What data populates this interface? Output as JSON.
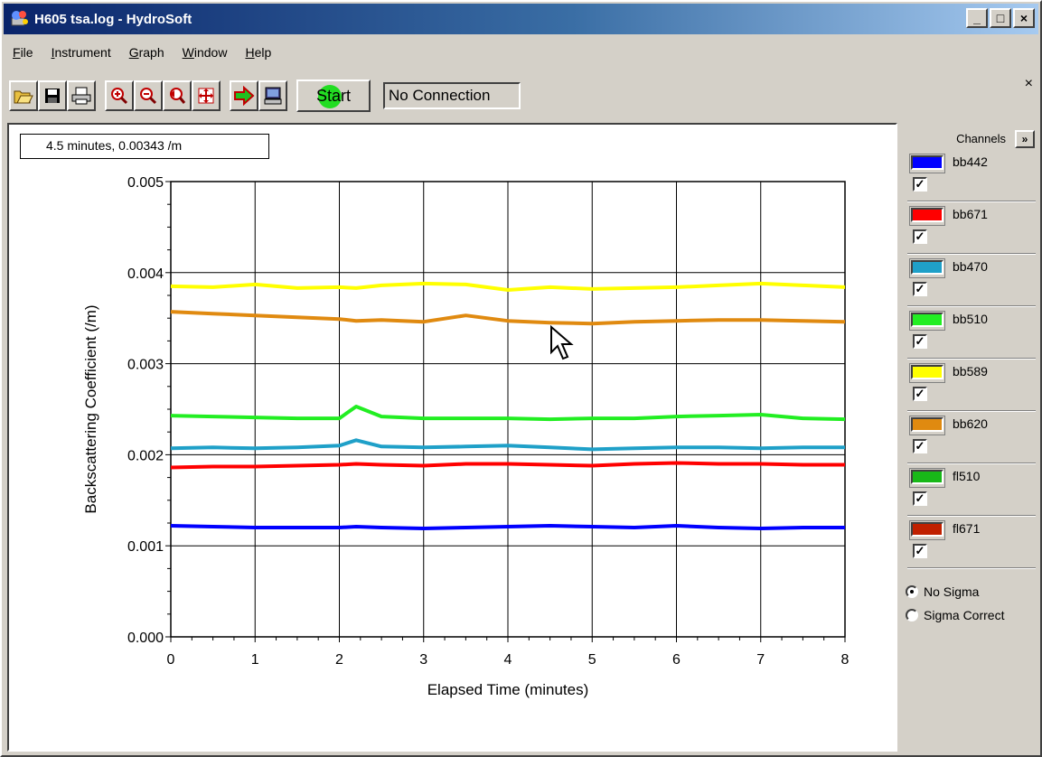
{
  "window": {
    "title": "H605 tsa.log - HydroSoft",
    "minimize": "_",
    "maximize": "□",
    "close": "×"
  },
  "menu": {
    "items": [
      {
        "accel": "F",
        "rest": "ile"
      },
      {
        "accel": "I",
        "rest": "nstrument"
      },
      {
        "accel": "G",
        "rest": "raph"
      },
      {
        "accel": "W",
        "rest": "indow"
      },
      {
        "accel": "H",
        "rest": "elp"
      }
    ]
  },
  "toolbar": {
    "start_label": "Start",
    "status": "No Connection",
    "panel_close": "×"
  },
  "plot": {
    "readout": "4.5 minutes, 0.00343 /m"
  },
  "chart_data": {
    "type": "line",
    "xlabel": "Elapsed Time (minutes)",
    "ylabel": "Backscattering Coefficient (/m)",
    "xlim": [
      0,
      8
    ],
    "ylim": [
      0.0,
      0.005
    ],
    "xticks": [
      "0",
      "1",
      "2",
      "3",
      "4",
      "5",
      "6",
      "7",
      "8"
    ],
    "yticks": [
      "0.000",
      "0.001",
      "0.002",
      "0.003",
      "0.004",
      "0.005"
    ],
    "grid": true,
    "x": [
      0,
      0.5,
      1,
      1.5,
      2,
      2.2,
      2.5,
      3,
      3.5,
      4,
      4.5,
      5,
      5.5,
      6,
      6.5,
      7,
      7.5,
      8
    ],
    "series": [
      {
        "name": "bb442",
        "color": "#0000ff",
        "values": [
          0.00122,
          0.00121,
          0.0012,
          0.0012,
          0.0012,
          0.00121,
          0.0012,
          0.00119,
          0.0012,
          0.00121,
          0.00122,
          0.00121,
          0.0012,
          0.00122,
          0.0012,
          0.00119,
          0.0012,
          0.0012
        ]
      },
      {
        "name": "bb671",
        "color": "#ff0000",
        "values": [
          0.00186,
          0.00187,
          0.00187,
          0.00188,
          0.00189,
          0.0019,
          0.00189,
          0.00188,
          0.0019,
          0.0019,
          0.00189,
          0.00188,
          0.0019,
          0.00191,
          0.0019,
          0.0019,
          0.00189,
          0.00189
        ]
      },
      {
        "name": "bb470",
        "color": "#1fa0c8",
        "values": [
          0.00207,
          0.00208,
          0.00207,
          0.00208,
          0.0021,
          0.00216,
          0.00209,
          0.00208,
          0.00209,
          0.0021,
          0.00208,
          0.00206,
          0.00207,
          0.00208,
          0.00208,
          0.00207,
          0.00208,
          0.00208
        ]
      },
      {
        "name": "bb510",
        "color": "#22ee22",
        "values": [
          0.00243,
          0.00242,
          0.00241,
          0.0024,
          0.0024,
          0.00253,
          0.00242,
          0.0024,
          0.0024,
          0.0024,
          0.00239,
          0.0024,
          0.0024,
          0.00242,
          0.00243,
          0.00244,
          0.0024,
          0.00239
        ]
      },
      {
        "name": "bb589",
        "color": "#ffff00",
        "values": [
          0.00385,
          0.00384,
          0.00387,
          0.00383,
          0.00384,
          0.00383,
          0.00386,
          0.00388,
          0.00387,
          0.00381,
          0.00384,
          0.00382,
          0.00383,
          0.00384,
          0.00386,
          0.00388,
          0.00386,
          0.00384
        ]
      },
      {
        "name": "bb620",
        "color": "#e08a10",
        "values": [
          0.00357,
          0.00355,
          0.00353,
          0.00351,
          0.00349,
          0.00347,
          0.00348,
          0.00346,
          0.00353,
          0.00347,
          0.00345,
          0.00344,
          0.00346,
          0.00347,
          0.00348,
          0.00348,
          0.00347,
          0.00346
        ]
      }
    ]
  },
  "channels": {
    "header": "Channels",
    "expand": "»",
    "check": "✓",
    "items": [
      {
        "name": "bb442",
        "color": "#0000ff"
      },
      {
        "name": "bb671",
        "color": "#ff0000"
      },
      {
        "name": "bb470",
        "color": "#1fa0c8"
      },
      {
        "name": "bb510",
        "color": "#22ee22"
      },
      {
        "name": "bb589",
        "color": "#ffff00"
      },
      {
        "name": "bb620",
        "color": "#e08a10"
      },
      {
        "name": "fl510",
        "color": "#18b818"
      },
      {
        "name": "fl671",
        "color": "#c02000"
      }
    ]
  },
  "sigma": {
    "no_sigma": "No Sigma",
    "sigma_correct": "Sigma Correct",
    "selected": "no_sigma"
  }
}
